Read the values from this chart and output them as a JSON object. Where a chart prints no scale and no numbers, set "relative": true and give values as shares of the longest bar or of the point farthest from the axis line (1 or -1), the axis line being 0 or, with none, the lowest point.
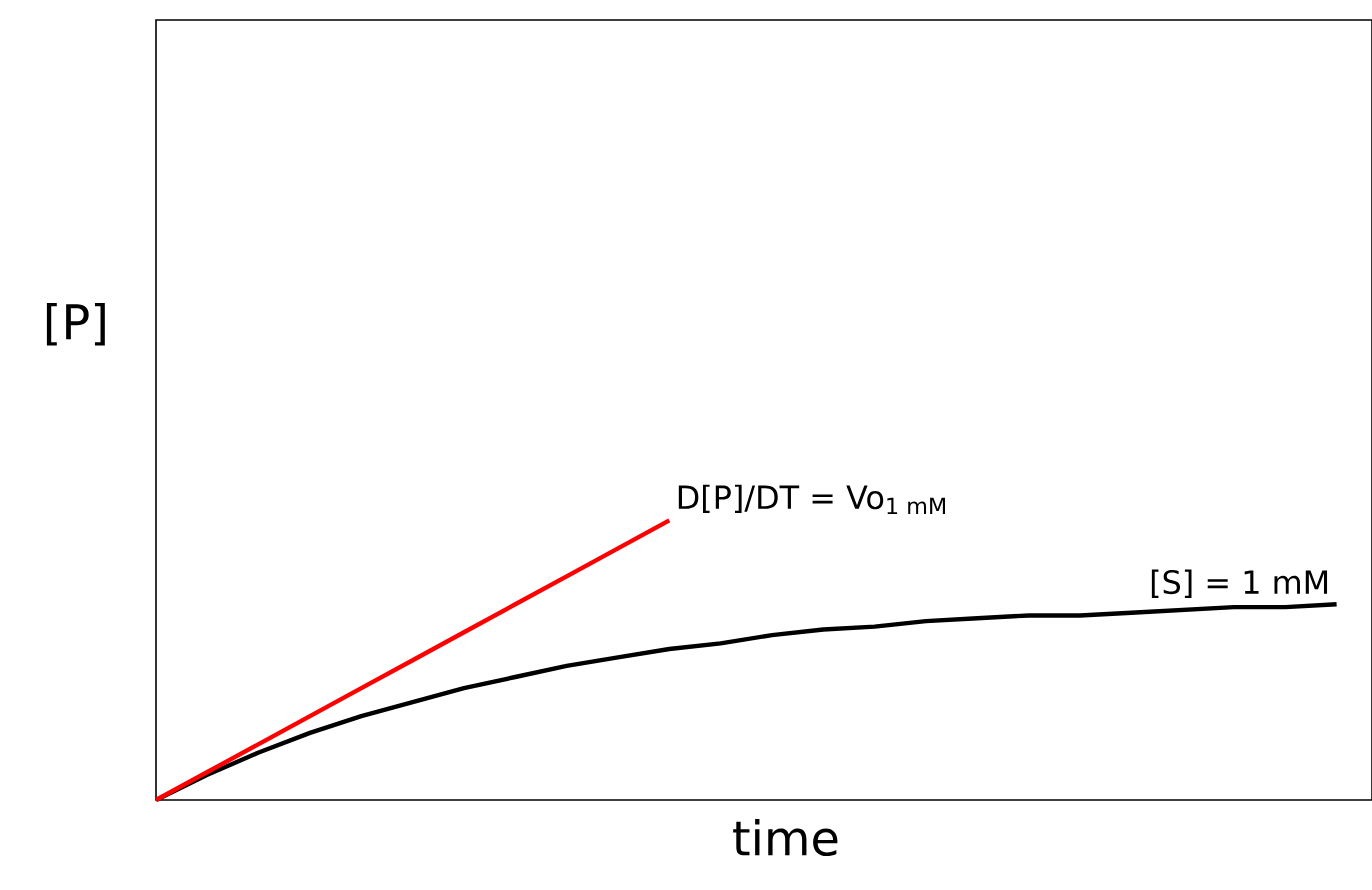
{
  "chart_data": {
    "type": "line",
    "relative": true,
    "xlabel": "time",
    "ylabel": "[P]",
    "categories": [
      null,
      null,
      null,
      null,
      null,
      null,
      null,
      null,
      null,
      null,
      null,
      null,
      null,
      null,
      null,
      null,
      null,
      null,
      null,
      null,
      null,
      null,
      null,
      null
    ],
    "series": [
      {
        "name": "[S] = 1 mM",
        "color": "#000000",
        "values": [
          0,
          0.09,
          0.17,
          0.24,
          0.3,
          0.35,
          0.4,
          0.44,
          0.48,
          0.51,
          0.54,
          0.56,
          0.59,
          0.61,
          0.62,
          0.64,
          0.65,
          0.66,
          0.66,
          0.67,
          0.68,
          0.69,
          0.69,
          0.7
        ]
      },
      {
        "name": "D[P]/DT = Vo$_{1 mM}$",
        "color": "#ff0000",
        "values": [
          0,
          0.1,
          0.2,
          0.3,
          0.4,
          0.5,
          0.6,
          0.7,
          0.8,
          0.9,
          1.0,
          null,
          null,
          null,
          null,
          null,
          null,
          null,
          null,
          null,
          null,
          null,
          null,
          null
        ]
      }
    ]
  }
}
